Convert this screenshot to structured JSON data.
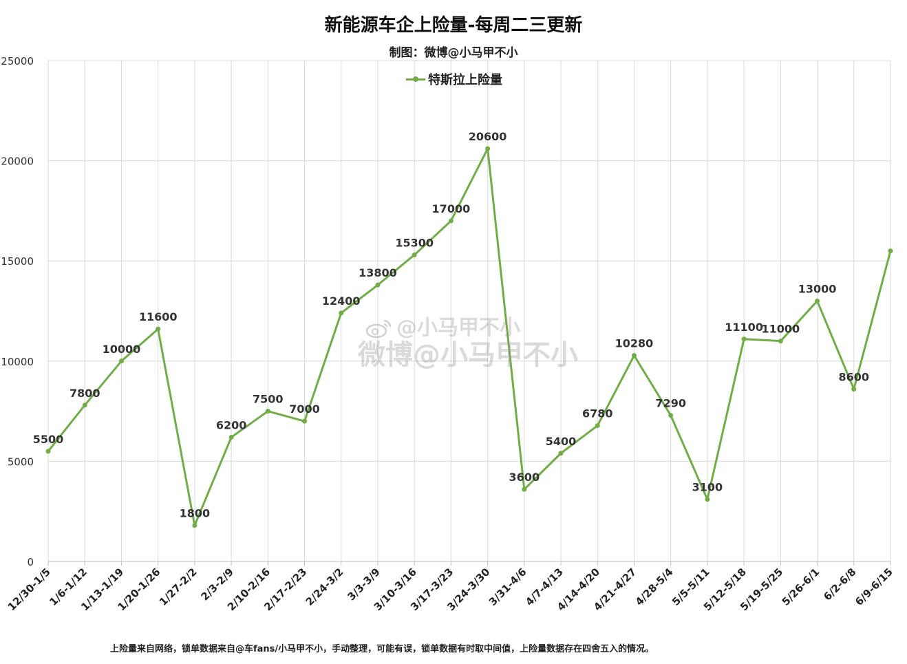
{
  "page": {
    "title": "新能源车企上险量-每周二三更新",
    "subtitle": "制图：微博@小马甲不小",
    "footnote": "上险量来自网络，锁单数据来自@车fans/小马甲不小，手动整理，可能有误，锁单数据有时取中间值，上险量数据存在四舍五入的情况。",
    "watermark_line1": "@小马甲不小",
    "watermark_line2": "微博@小马甲不小",
    "watermark_icon": "weibo-icon"
  },
  "chart_data": {
    "type": "line",
    "title": "新能源车企上险量-每周二三更新",
    "subtitle": "制图：微博@小马甲不小",
    "xlabel": "",
    "ylabel": "",
    "ylim": [
      0,
      25000
    ],
    "yticks": [
      0,
      5000,
      10000,
      15000,
      20000,
      25000
    ],
    "grid": true,
    "legend_position": "top-center",
    "color": "#70ad47",
    "categories": [
      "12/30-1/5",
      "1/6-1/12",
      "1/13-1/19",
      "1/20-1/26",
      "1/27-2/2",
      "2/3-2/9",
      "2/10-2/16",
      "2/17-2/23",
      "2/24-3/2",
      "3/3-3/9",
      "3/10-3/16",
      "3/17-3/23",
      "3/24-3/30",
      "3/31-4/6",
      "4/7-4/13",
      "4/14-4/20",
      "4/21-4/27",
      "4/28-5/4",
      "5/5-5/11",
      "5/12-5/18",
      "5/19-5/25",
      "5/26-6/1",
      "6/2-6/8",
      "6/9-6/15"
    ],
    "series": [
      {
        "name": "特斯拉上险量",
        "values": [
          5500,
          7800,
          10000,
          11600,
          1800,
          6200,
          7500,
          7000,
          12400,
          13800,
          15300,
          17000,
          20600,
          3600,
          5400,
          6780,
          10280,
          7290,
          3100,
          11100,
          11000,
          13000,
          8600,
          15500
        ],
        "labels": [
          "5500",
          "7800",
          "10000",
          "11600",
          "1800",
          "6200",
          "7500",
          "7000",
          "12400",
          "13800",
          "15300",
          "17000",
          "20600",
          "3600",
          "5400",
          "6780",
          "10280",
          "7290",
          "3100",
          "11100",
          "11000",
          "13000",
          "8600",
          ""
        ]
      }
    ]
  }
}
